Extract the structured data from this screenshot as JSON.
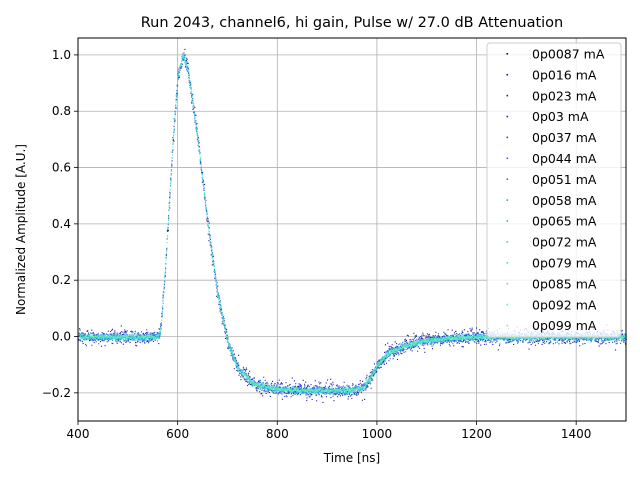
{
  "chart_data": {
    "type": "scatter",
    "title": "Run 2043, channel6, hi gain, Pulse w/ 27.0 dB Attenuation",
    "xlabel": "Time [ns]",
    "ylabel": "Normalized Amplitude [A.U.]",
    "xlim": [
      400,
      1500
    ],
    "ylim": [
      -0.3,
      1.06
    ],
    "xticks": [
      400,
      600,
      800,
      1000,
      1200,
      1400
    ],
    "yticks": [
      -0.2,
      0.0,
      0.2,
      0.4,
      0.6,
      0.8,
      1.0
    ],
    "xtick_labels": [
      "400",
      "600",
      "800",
      "1000",
      "1200",
      "1400"
    ],
    "ytick_labels": [
      "−0.2",
      "0.0",
      "0.2",
      "0.4",
      "0.6",
      "0.8",
      "1.0"
    ],
    "grid": true,
    "legend_position": "top-right",
    "pulse_shape": {
      "x": [
        400,
        560,
        565,
        575,
        590,
        600,
        610,
        620,
        640,
        660,
        680,
        700,
        720,
        750,
        780,
        800,
        850,
        900,
        950,
        970,
        985,
        1000,
        1020,
        1050,
        1080,
        1100,
        1150,
        1200,
        1300,
        1500
      ],
      "y": [
        0.0,
        0.0,
        0.02,
        0.25,
        0.7,
        0.93,
        1.0,
        0.95,
        0.7,
        0.4,
        0.15,
        -0.02,
        -0.11,
        -0.165,
        -0.18,
        -0.185,
        -0.19,
        -0.19,
        -0.19,
        -0.18,
        -0.15,
        -0.1,
        -0.06,
        -0.035,
        -0.02,
        -0.012,
        -0.004,
        0.0,
        0.0,
        0.0
      ]
    },
    "series": [
      {
        "name": "0p0087 mA",
        "color": "#00008b",
        "noise": 0.022
      },
      {
        "name": "0p016 mA",
        "color": "#0a0fa0",
        "noise": 0.018
      },
      {
        "name": "0p023 mA",
        "color": "#1320b4",
        "noise": 0.015
      },
      {
        "name": "0p03 mA",
        "color": "#1535c8",
        "noise": 0.013
      },
      {
        "name": "0p037 mA",
        "color": "#1a4ed8",
        "noise": 0.011
      },
      {
        "name": "0p044 mA",
        "color": "#1f6ae0",
        "noise": 0.01
      },
      {
        "name": "0p051 mA",
        "color": "#2586e4",
        "noise": 0.009
      },
      {
        "name": "0p058 mA",
        "color": "#2aa0e6",
        "noise": 0.008
      },
      {
        "name": "0p065 mA",
        "color": "#30b8e6",
        "noise": 0.007
      },
      {
        "name": "0p072 mA",
        "color": "#38cde2",
        "noise": 0.006
      },
      {
        "name": "0p079 mA",
        "color": "#42dcd8",
        "noise": 0.006
      },
      {
        "name": "0p085 mA",
        "color": "#4ee6c8",
        "noise": 0.005
      },
      {
        "name": "0p092 mA",
        "color": "#5af0b8",
        "noise": 0.005
      },
      {
        "name": "0p099 mA",
        "color": "#66f5a8",
        "noise": 0.004
      }
    ]
  }
}
